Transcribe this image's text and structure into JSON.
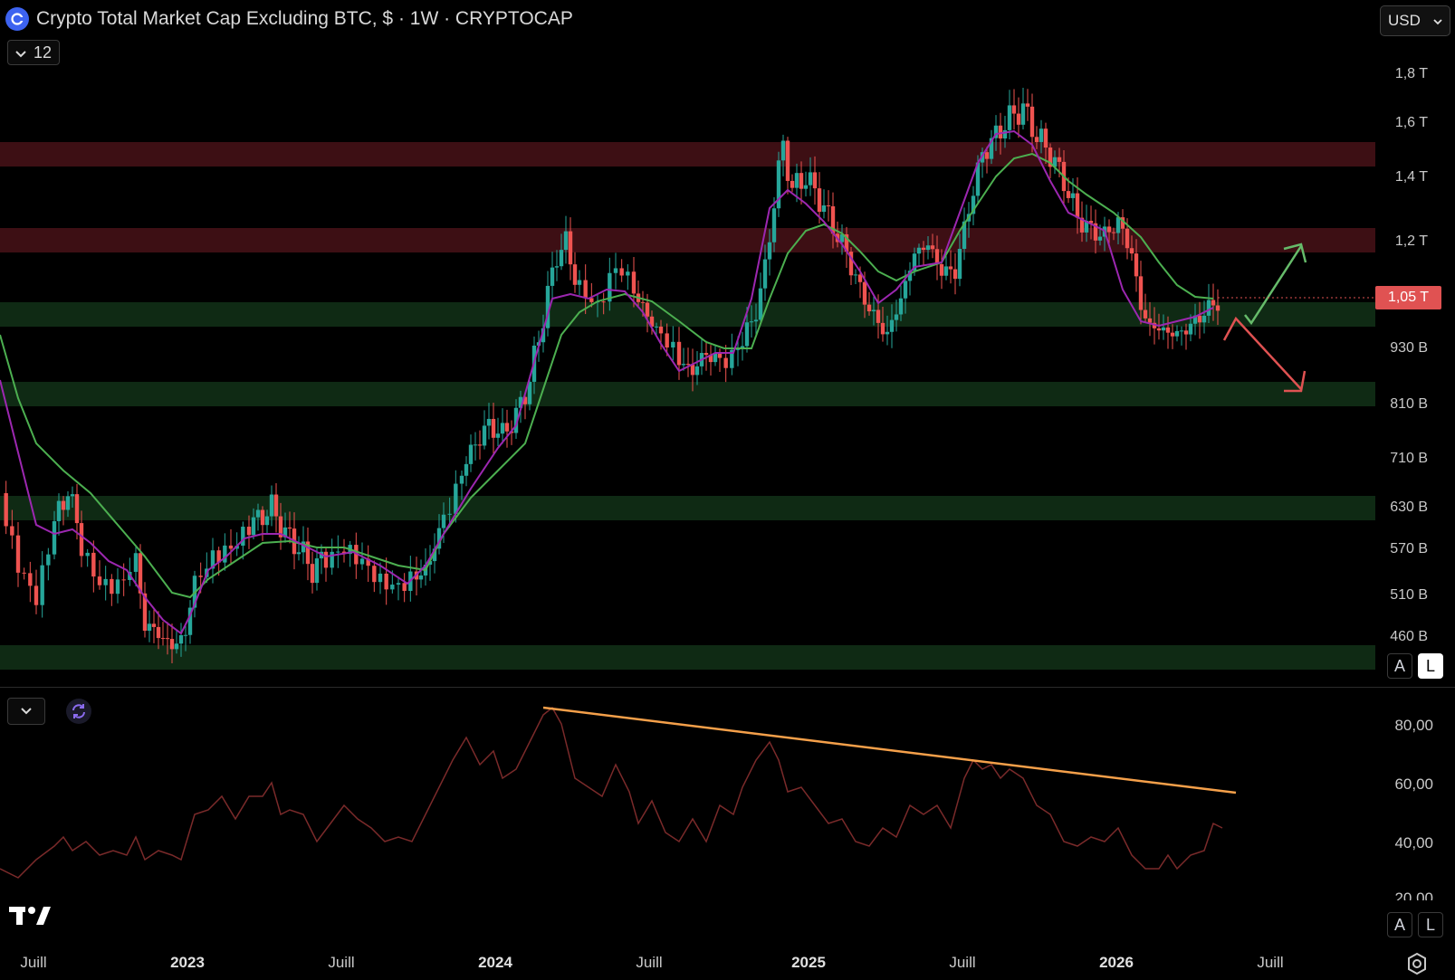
{
  "header": {
    "title": "Crypto Total Market Cap Excluding BTC, $ · 1W · CRYPTOCAP",
    "interval_value": "12"
  },
  "currency": {
    "selected": "USD"
  },
  "price_axis": {
    "labels": [
      "1,8 T",
      "1,6 T",
      "1,4 T",
      "1,2 T",
      "930 B",
      "810 B",
      "710 B",
      "630 B",
      "570 B",
      "510 B",
      "460 B"
    ],
    "current_price": "1,05 T",
    "current_price_color": "#e05252"
  },
  "scale_buttons": {
    "auto": "A",
    "log": "L"
  },
  "rsi_axis": {
    "labels": [
      "80,00",
      "60,00",
      "40,00",
      "20,00"
    ]
  },
  "time_axis": {
    "labels": [
      "Juill",
      "2023",
      "Juill",
      "2024",
      "Juill",
      "2025",
      "Juill",
      "2026",
      "Juill"
    ]
  },
  "colors": {
    "up": "#26a69a",
    "down": "#ef5350",
    "ma_fast": "#9c27b0",
    "ma_slow": "#4caf50",
    "resistance_zone": "#3d0f14",
    "support_zone": "#0f2a14",
    "rsi_line": "#7a2a2a",
    "trendline": "#f5a04a",
    "arrow_up": "#66bb6a",
    "arrow_down": "#e05252"
  }
}
